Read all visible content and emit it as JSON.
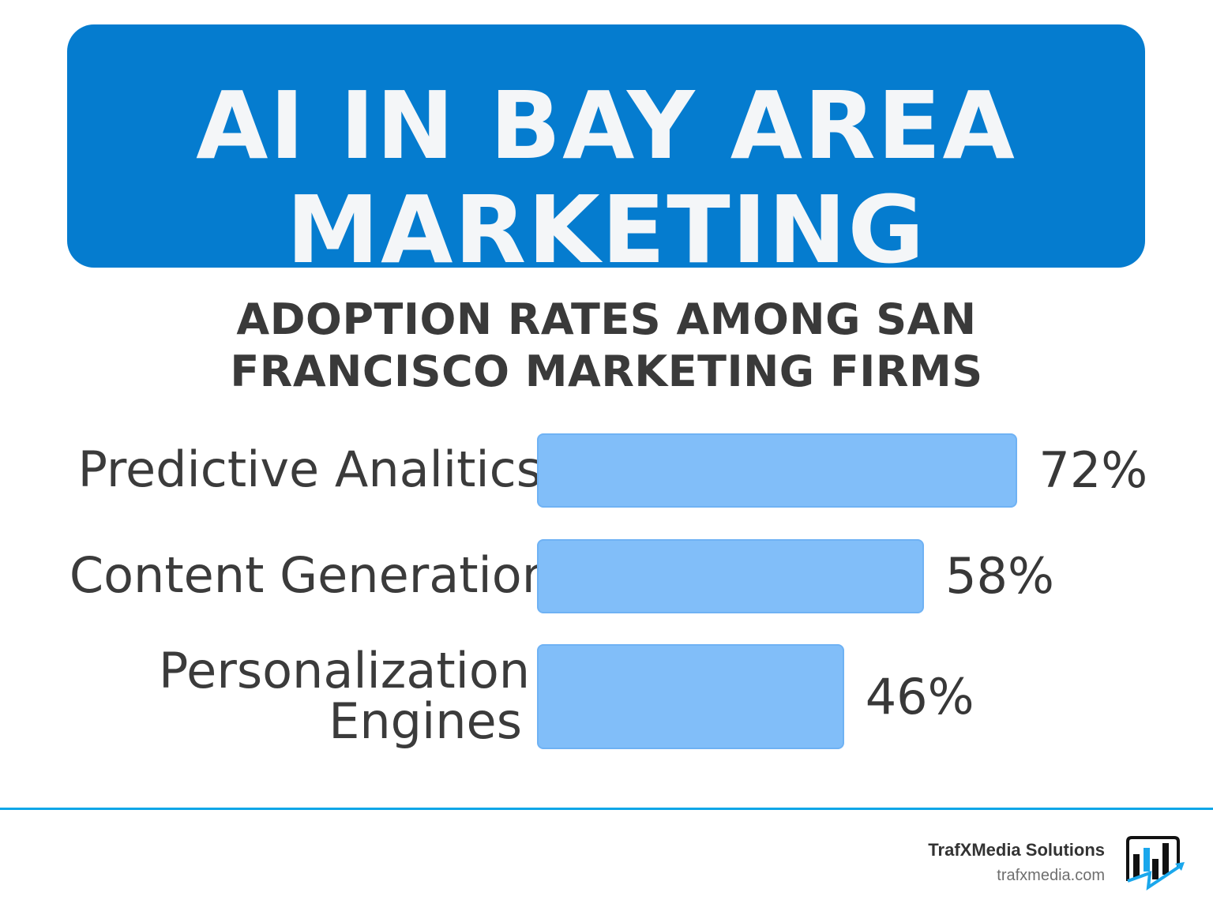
{
  "header": {
    "title": "AI IN BAY AREA MARKETING"
  },
  "chart_data": {
    "type": "bar",
    "orientation": "horizontal",
    "title": "ADOPTION RATES AMONG SAN FRANCISCO MARKETING FIRMS",
    "categories": [
      "Predictive Analitics",
      "Content Generation",
      "Personalization Engines"
    ],
    "values": [
      72,
      58,
      46
    ],
    "value_labels": [
      "72%",
      "58%",
      "46%"
    ],
    "xlim": [
      0,
      100
    ],
    "grid": false,
    "bar_color": "#81bef9"
  },
  "footer": {
    "brand": "TrafXMedia Solutions",
    "url": "trafxmedia.com"
  },
  "colors": {
    "banner": "#057ccf",
    "rule": "#0aa6e8",
    "logo_accent": "#1aa7ec"
  }
}
